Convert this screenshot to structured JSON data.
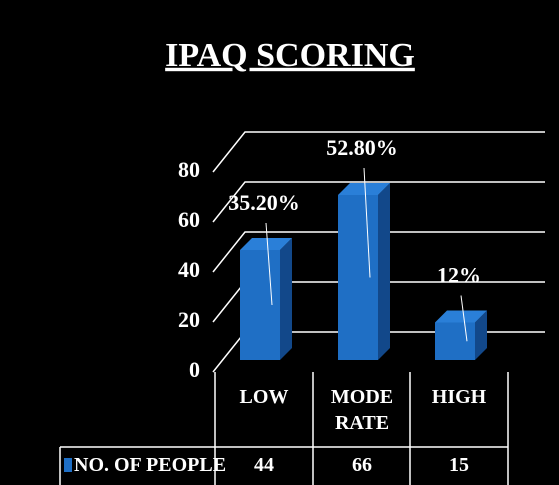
{
  "chart_data": {
    "type": "bar3d",
    "title": "IPAQ SCORING",
    "categories": [
      "LOW",
      "MODERATE",
      "HIGH"
    ],
    "series": [
      {
        "name": "NO. OF PEOPLE",
        "color": "#1f6fc5",
        "values": [
          44,
          66,
          15
        ]
      }
    ],
    "annotations": [
      "35.20%",
      "52.80%",
      "12%"
    ],
    "ylim": [
      0,
      80
    ],
    "yticks": [
      0,
      20,
      40,
      60,
      80
    ],
    "grid": true
  }
}
